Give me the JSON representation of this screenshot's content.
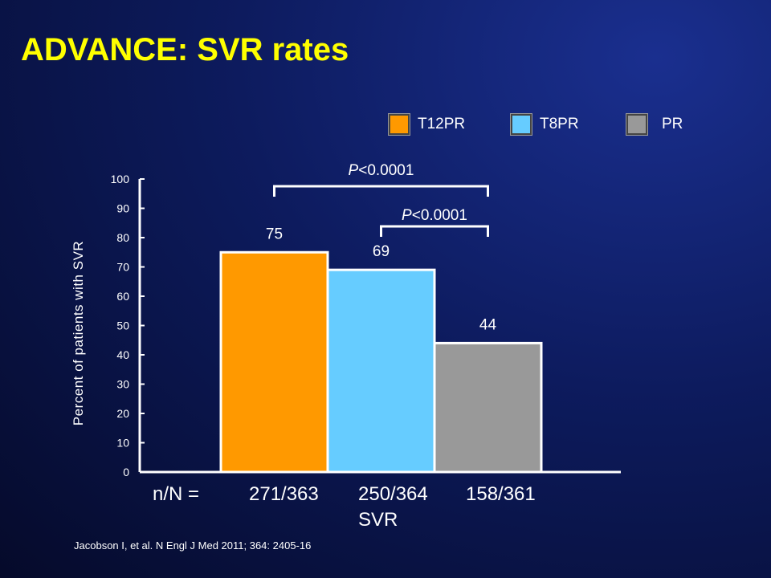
{
  "title": "ADVANCE: SVR rates",
  "citation": "Jacobson I, et al. N Engl J Med 2011; 364: 2405-16",
  "nn_prefix": "n/N =",
  "chart_data": {
    "type": "bar",
    "categories": [
      "T12PR",
      "T8PR",
      "PR"
    ],
    "values": [
      75,
      69,
      44
    ],
    "colors": [
      "#ff9900",
      "#66ccff",
      "#999999"
    ],
    "n_over_N": [
      "271/363",
      "250/364",
      "158/361"
    ],
    "xlabel": "SVR",
    "ylabel": "Percent of patients with SVR",
    "ylim": [
      0,
      100
    ],
    "yticks": [
      "0",
      "10",
      "20",
      "30",
      "40",
      "50",
      "60",
      "70",
      "80",
      "90",
      "100"
    ],
    "legend": {
      "placement": "top",
      "entries": [
        {
          "label": "T12PR",
          "color": "#ff9900"
        },
        {
          "label": "T8PR",
          "color": "#66ccff"
        },
        {
          "label": "PR",
          "color": "#999999"
        }
      ]
    },
    "annotations": [
      {
        "label_italic": "P",
        "label_rest": "<0.0001",
        "from": "T12PR",
        "to": "PR"
      },
      {
        "label_italic": "P",
        "label_rest": "<0.0001",
        "from": "T8PR",
        "to": "PR"
      }
    ]
  }
}
